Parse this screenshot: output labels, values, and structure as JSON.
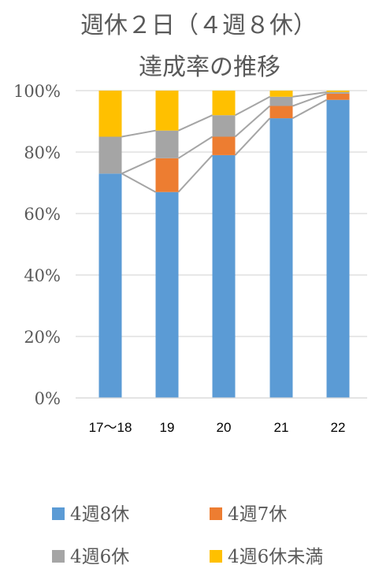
{
  "chart_data": {
    "type": "bar",
    "stacked": true,
    "title_lines": [
      "週休２日（４週８休）",
      "達成率の推移"
    ],
    "categories": [
      "17～18",
      "19",
      "20",
      "21",
      "22"
    ],
    "ylim": [
      0,
      100
    ],
    "yticks": [
      {
        "value": 0,
        "label": "0%"
      },
      {
        "value": 20,
        "label": "20%"
      },
      {
        "value": 40,
        "label": "40%"
      },
      {
        "value": 60,
        "label": "60%"
      },
      {
        "value": 80,
        "label": "80%"
      },
      {
        "value": 100,
        "label": "100%"
      }
    ],
    "grid": true,
    "series_lines": true,
    "legend_position": "bottom",
    "series": [
      {
        "name": "4週8休",
        "color": "#5B9BD5",
        "values": [
          73,
          67,
          79,
          91,
          97
        ]
      },
      {
        "name": "4週7休",
        "color": "#ED7D31",
        "values": [
          0,
          11,
          6,
          4,
          2
        ]
      },
      {
        "name": "4週6休",
        "color": "#A5A5A5",
        "values": [
          12,
          9,
          7,
          3,
          0.5
        ]
      },
      {
        "name": "4週6休未満",
        "color": "#FFC000",
        "values": [
          15,
          13,
          8,
          2,
          0.5
        ]
      }
    ]
  }
}
